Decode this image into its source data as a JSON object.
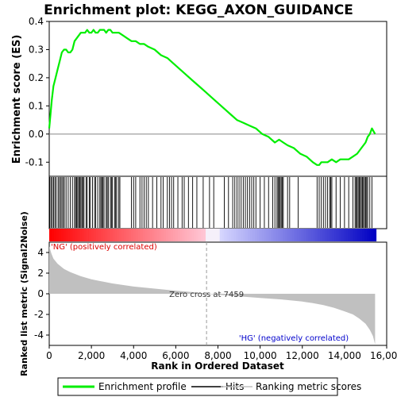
{
  "chart_data": {
    "type": "line",
    "title": "Enrichment plot: KEGG_AXON_GUIDANCE",
    "top_panel": {
      "ylabel": "Enrichment score (ES)",
      "ylim": [
        -0.15,
        0.4
      ],
      "yticks": [
        "-0.1",
        "0.0",
        "0.1",
        "0.2",
        "0.3",
        "0.4"
      ],
      "ytick_values": [
        -0.1,
        0.0,
        0.1,
        0.2,
        0.3,
        0.4
      ],
      "series": [
        {
          "name": "Enrichment profile",
          "color": "#00ee00",
          "x": [
            0,
            60,
            120,
            200,
            300,
            400,
            500,
            600,
            700,
            800,
            900,
            1000,
            1100,
            1200,
            1300,
            1400,
            1500,
            1600,
            1700,
            1800,
            1900,
            2000,
            2100,
            2200,
            2300,
            2400,
            2500,
            2600,
            2700,
            2800,
            2900,
            3000,
            3100,
            3200,
            3300,
            3500,
            3700,
            3900,
            4100,
            4300,
            4500,
            4700,
            5000,
            5300,
            5600,
            5900,
            6200,
            6500,
            6800,
            7100,
            7400,
            7700,
            8000,
            8300,
            8600,
            8900,
            9200,
            9500,
            9800,
            10100,
            10400,
            10700,
            10900,
            11100,
            11300,
            11600,
            11900,
            12200,
            12500,
            12700,
            12800,
            12900,
            13000,
            13200,
            13400,
            13600,
            13800,
            14000,
            14200,
            14400,
            14600,
            14800,
            15000,
            15100,
            15200,
            15300,
            15450
          ],
          "y": [
            0.02,
            0.07,
            0.12,
            0.17,
            0.2,
            0.23,
            0.26,
            0.29,
            0.3,
            0.3,
            0.29,
            0.29,
            0.3,
            0.33,
            0.34,
            0.35,
            0.36,
            0.36,
            0.36,
            0.37,
            0.36,
            0.36,
            0.37,
            0.36,
            0.36,
            0.37,
            0.37,
            0.37,
            0.36,
            0.37,
            0.37,
            0.36,
            0.36,
            0.36,
            0.36,
            0.35,
            0.34,
            0.33,
            0.33,
            0.32,
            0.32,
            0.31,
            0.3,
            0.28,
            0.27,
            0.25,
            0.23,
            0.21,
            0.19,
            0.17,
            0.15,
            0.13,
            0.11,
            0.09,
            0.07,
            0.05,
            0.04,
            0.03,
            0.02,
            0.0,
            -0.01,
            -0.03,
            -0.02,
            -0.03,
            -0.04,
            -0.05,
            -0.07,
            -0.08,
            -0.1,
            -0.11,
            -0.11,
            -0.1,
            -0.1,
            -0.1,
            -0.09,
            -0.1,
            -0.09,
            -0.09,
            -0.09,
            -0.08,
            -0.07,
            -0.05,
            -0.03,
            -0.01,
            0.0,
            0.02,
            0.0
          ]
        }
      ]
    },
    "hits_panel": {
      "hit_positions": [
        30,
        90,
        150,
        210,
        270,
        330,
        420,
        480,
        540,
        600,
        660,
        720,
        800,
        900,
        1000,
        1100,
        1200,
        1250,
        1300,
        1350,
        1400,
        1450,
        1500,
        1550,
        1600,
        1650,
        1750,
        1800,
        1900,
        1950,
        2050,
        2150,
        2200,
        2300,
        2400,
        2450,
        2500,
        2550,
        2600,
        2700,
        2750,
        2800,
        2900,
        2950,
        3000,
        3100,
        3150,
        3200,
        3300,
        3350,
        3900,
        4000,
        4100,
        4300,
        4400,
        4500,
        4600,
        4700,
        4900,
        5100,
        5300,
        5400,
        5600,
        5700,
        5800,
        5900,
        6100,
        6300,
        6400,
        6600,
        6800,
        7000,
        7300,
        7600,
        7800,
        8300,
        8500,
        8700,
        8800,
        8900,
        9000,
        9100,
        9200,
        9300,
        9400,
        9500,
        9600,
        9700,
        9800,
        10000,
        10200,
        10400,
        10600,
        10700,
        10800,
        10850,
        10900,
        10950,
        11000,
        11050,
        11100,
        11300,
        11400,
        11800,
        12700,
        12800,
        12900,
        13000,
        13100,
        13200,
        13300,
        13350,
        13400,
        13600,
        13800,
        14000,
        14200,
        14400,
        14500,
        14550,
        14600,
        14650,
        14700,
        14750,
        14800,
        14850,
        14900,
        14950,
        15000,
        15050,
        15100,
        15200,
        15300
      ]
    },
    "metric_panel": {
      "ylabel": "Ranked list metric (Signal2Noise)",
      "ylim": [
        -5,
        5
      ],
      "yticks": [
        "-4",
        "-2",
        "0",
        "2",
        "4"
      ],
      "ytick_values": [
        -4,
        -2,
        0,
        2,
        4
      ],
      "x": [
        0,
        100,
        200,
        400,
        700,
        1000,
        1500,
        2000,
        3000,
        4000,
        5000,
        6000,
        7000,
        7459,
        8000,
        9000,
        10000,
        11000,
        12000,
        12500,
        13000,
        13500,
        14000,
        14400,
        14700,
        15000,
        15200,
        15350,
        15450
      ],
      "y": [
        4.6,
        3.9,
        3.4,
        2.9,
        2.4,
        2.1,
        1.7,
        1.4,
        1.0,
        0.7,
        0.5,
        0.3,
        0.12,
        0.0,
        -0.1,
        -0.25,
        -0.4,
        -0.55,
        -0.75,
        -0.9,
        -1.1,
        -1.35,
        -1.7,
        -2.0,
        -2.4,
        -2.9,
        -3.5,
        -4.1,
        -4.9
      ],
      "annotations": {
        "pos_label": "'NG' (positively correlated)",
        "neg_label": "'HG' (negatively correlated)",
        "zero_cross": "Zero cross at 7459",
        "zero_cross_x": 7459
      }
    },
    "xlabel": "Rank in Ordered Dataset",
    "xlim": [
      0,
      16000
    ],
    "xticks": [
      "0",
      "2,000",
      "4,000",
      "6,000",
      "8,000",
      "10,000",
      "12,000",
      "14,000",
      "16,000"
    ],
    "xtick_values": [
      0,
      2000,
      4000,
      6000,
      8000,
      10000,
      12000,
      14000,
      16000
    ],
    "n_genes": 15500,
    "legend": {
      "placement": "bottom",
      "entries": [
        {
          "label": "Enrichment profile",
          "color": "#00ee00"
        },
        {
          "label": "Hits",
          "color": "#000000"
        },
        {
          "label": "Ranking metric scores",
          "color": "#c0c0c0"
        }
      ]
    },
    "colors": {
      "es_line": "#00ee00",
      "metric_fill": "#c0c0c0",
      "pos_label": "#dd0000",
      "neg_label": "#0000cc"
    }
  }
}
